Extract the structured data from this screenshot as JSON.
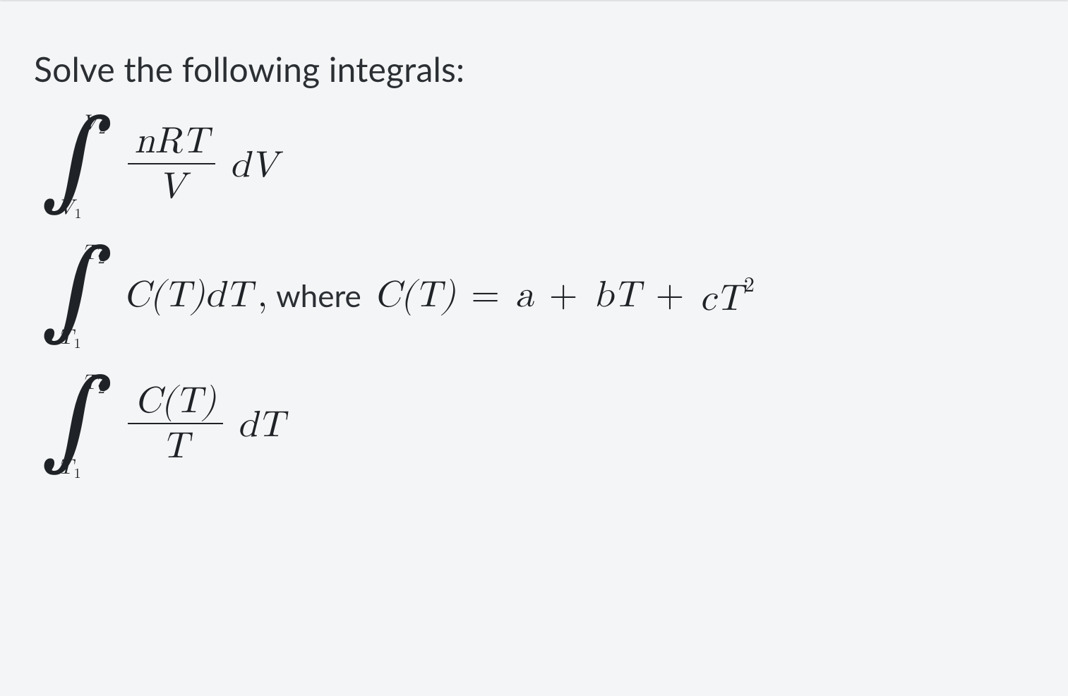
{
  "page": {
    "background_color": "#f4f5f6",
    "text_color": "#2b2f33",
    "math_color": "#1f2226",
    "prompt_fontsize_pt": 36,
    "math_fontsize_pt": 40,
    "limit_fontsize_pt": 22
  },
  "prompt": "Solve the following integrals:",
  "eq1": {
    "upper_var": "V",
    "upper_sub": "2",
    "lower_var": "V",
    "lower_sub": "1",
    "frac_num": "nRT",
    "frac_den": "V",
    "differential": "dV"
  },
  "eq2": {
    "upper_var": "T",
    "upper_sub": "2",
    "lower_var": "T",
    "lower_sub": "1",
    "integrand": "C(T)dT",
    "comma": ",",
    "where_label": "where",
    "definition_lhs": "C(T)",
    "eq_sign": "=",
    "term_a": "a",
    "plus1": "+",
    "term_b_coef": "b",
    "term_b_var": "T",
    "plus2": "+",
    "term_c_coef": "c",
    "term_c_var": "T",
    "term_c_pow": "2"
  },
  "eq3": {
    "upper_var": "T",
    "upper_sub": "2",
    "lower_var": "T",
    "lower_sub": "1",
    "frac_num": "C(T)",
    "frac_den": "T",
    "differential": "dT"
  }
}
